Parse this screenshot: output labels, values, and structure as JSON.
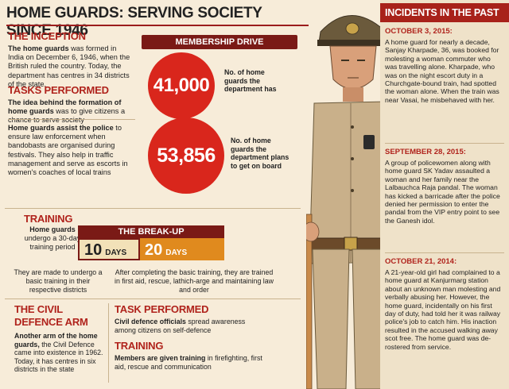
{
  "title": "HOME GUARDS: SERVING SOCIETY SINCE 1946",
  "inception": {
    "heading": "THE INCEPTION",
    "lead": "The home guards",
    "text": " was formed in India on December 6, 1946, when the British ruled the country. Today, the department has centres in 34 districts of the state."
  },
  "tasks": {
    "heading": "TASKS PERFORMED",
    "p1_lead": "The idea behind the formation of home guards",
    "p1_text": " was to give citizens a chance to serve society",
    "p2_lead": "Home guards assist the police",
    "p2_text": " to ensure law enforcement when bandobasts are organised during festivals. They also help in traffic management and serve as escorts in women's coaches of local trains"
  },
  "membership": {
    "heading": "MEMBERSHIP DRIVE",
    "stat1_value": "41,000",
    "stat1_label": "No. of home guards the department has",
    "stat2_value": "53,856",
    "stat2_label": "No. of home guards the department plans to get on board"
  },
  "training": {
    "heading": "TRAINING",
    "lead": "Home guards",
    "text": " undergo a 30-day training period",
    "basic": "They are made to undergo a basic training in their respective districts",
    "after": "After completing the basic training, they are trained in first aid, rescue, lathich-arge and maintaining law and order"
  },
  "breakup": {
    "heading": "THE BREAK-UP",
    "first_num": "10",
    "first_unit": "DAYS",
    "second_num": "20",
    "second_unit": "DAYS"
  },
  "civil": {
    "heading_line1": "THE CIVIL",
    "heading_line2": "DEFENCE ARM",
    "lead": "Another arm of the home guards,",
    "text": " the Civil Defence came into existence in 1962. Today, it has centres in six districts in the state"
  },
  "task2": {
    "heading": "TASK PERFORMED",
    "lead": "Civil defence officials",
    "text": " spread awareness among citizens on self-defence"
  },
  "training2": {
    "heading": "TRAINING",
    "lead": "Members are given training",
    "text": " in firefighting, first aid, rescue and communication"
  },
  "incidents": {
    "heading": "INCIDENTS IN THE PAST",
    "items": [
      {
        "date": "OCTOBER 3, 2015:",
        "text": "A home guard for nearly a decade, Sanjay Kharpade, 36, was booked for molesting a woman commuter who was travelling alone. Kharpade, who was on the night escort duty in a Churchgate-bound train, had spotted the woman alone. When the train was near Vasai, he misbehaved with her."
      },
      {
        "date": "SEPTEMBER 28, 2015:",
        "text": "A group of policewomen along with home guard SK Yadav assaulted a woman and her family near the Lalbauchca Raja pandal. The woman has kicked a barricade after the police denied her permission to enter the pandal from the VIP entry point to see the Ganesh idol."
      },
      {
        "date": "OCTOBER 21, 2014:",
        "text": "A 21-year-old girl had complained to a home guard at Kanjurmarg station about an unknown man molesting and verbally abusing her. However, the home guard, incidentally on his first day of duty, had told her it was railway police's job to catch him. His inaction resulted in the accused walking away scot free. The home guard was de-rostered from service."
      }
    ]
  },
  "colors": {
    "accent_red": "#d9261c",
    "dark_red": "#7a1a16",
    "heading_red": "#b0231c",
    "orange": "#e08a1e",
    "background": "#f7ecd9"
  }
}
